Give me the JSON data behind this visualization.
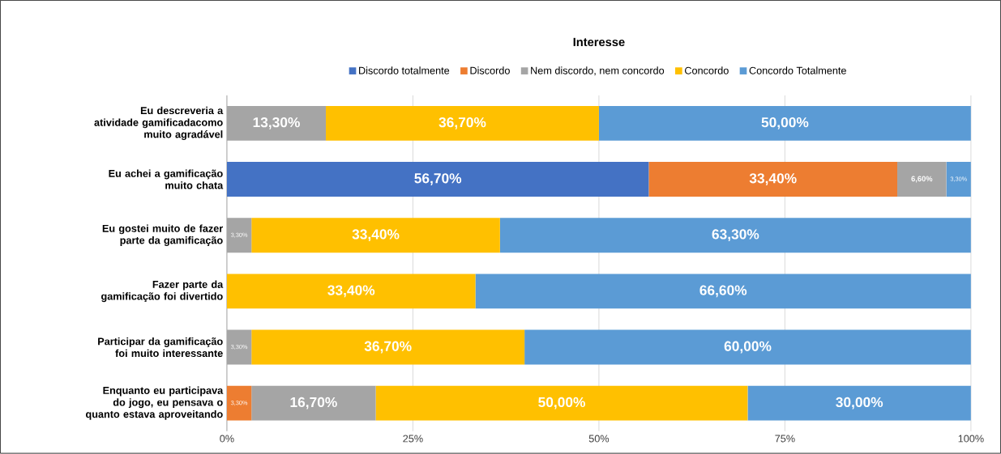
{
  "chart_data": {
    "type": "bar",
    "orientation": "horizontal",
    "stacked": true,
    "title": "Interesse",
    "categories": [
      "Eu descreveria a atividade gamificadacomo muito agradável",
      "Eu achei a gamificação muito chata",
      "Eu gostei muito de fazer parte da gamificação",
      "Fazer parte da gamificação foi divertido",
      "Participar da gamificação foi muito interessante",
      "Enquanto eu participava do jogo, eu pensava o quanto estava aproveitando"
    ],
    "series": [
      {
        "name": "Discordo totalmente",
        "color": "#4472c4",
        "values": [
          null,
          56.7,
          null,
          null,
          null,
          null
        ],
        "value_labels": [
          null,
          "56,70%",
          null,
          null,
          null,
          null
        ]
      },
      {
        "name": "Discordo",
        "color": "#ed7d31",
        "values": [
          null,
          33.4,
          null,
          null,
          null,
          3.3
        ],
        "value_labels": [
          null,
          "33,40%",
          null,
          null,
          null,
          "3,30%"
        ]
      },
      {
        "name": "Nem discordo, nem concordo",
        "color": "#a5a5a5",
        "values": [
          13.3,
          6.6,
          3.3,
          null,
          3.3,
          16.7
        ],
        "value_labels": [
          "13,30%",
          "6,60%",
          "3,30%",
          null,
          "3,30%",
          "16,70%"
        ]
      },
      {
        "name": "Concordo",
        "color": "#ffc000",
        "values": [
          36.7,
          null,
          33.4,
          33.4,
          36.7,
          50.0
        ],
        "value_labels": [
          "36,70%",
          null,
          "33,40%",
          "33,40%",
          "36,70%",
          "50,00%"
        ]
      },
      {
        "name": "Concordo Totalmente",
        "color": "#5b9bd5",
        "values": [
          50.0,
          3.3,
          63.3,
          66.6,
          60.0,
          30.0
        ],
        "value_labels": [
          "50,00%",
          "3,30%",
          "63,30%",
          "66,60%",
          "60,00%",
          "30,00%"
        ]
      }
    ],
    "xlim": [
      0,
      100
    ],
    "xticks": [
      {
        "value": 0,
        "label": "0%"
      },
      {
        "value": 25,
        "label": "25%"
      },
      {
        "value": 50,
        "label": "50%"
      },
      {
        "value": 75,
        "label": "75%"
      },
      {
        "value": 100,
        "label": "100%"
      }
    ],
    "grid": "x",
    "legend": "top"
  }
}
